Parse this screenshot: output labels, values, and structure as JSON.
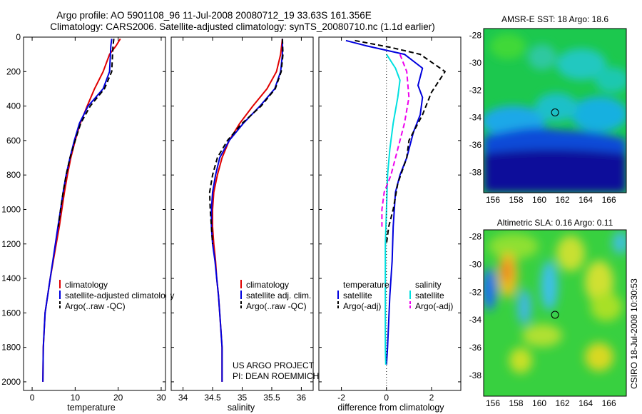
{
  "header": {
    "title_line1": "Argo profile: AO 5901108_96 11-Jul-2008 20080712_19 33.63S 161.356E",
    "title_line2": "Climatology: CARS2006. Satellite-adjusted climatology: synTS_20080710.nc (1.1d earlier)"
  },
  "side_label": "CSIRO 18-Jul-2008 10:30:53",
  "colors": {
    "red": "#e00000",
    "blue": "#0000dd",
    "black": "#000000",
    "cyan": "#00e0e0",
    "magenta": "#ee00ee"
  },
  "chart_data": [
    {
      "type": "line",
      "title": "",
      "xlabel": "temperature",
      "ylabel": "",
      "xlim": [
        -2,
        31
      ],
      "ylim": [
        2050,
        0
      ],
      "xticks": [
        "0",
        "10",
        "20",
        "30"
      ],
      "yticks": [
        "0",
        "200",
        "400",
        "600",
        "800",
        "1000",
        "1200",
        "1400",
        "1600",
        "1800",
        "2000"
      ],
      "legend": [
        "climatology",
        "satellite-adjusted climatology",
        "Argo(..raw -QC)"
      ],
      "legend_location": "lower-left",
      "series": [
        {
          "name": "climatology",
          "color": "red",
          "style": "solid",
          "x": [
            20.5,
            19.5,
            18.0,
            16.5,
            14.5,
            12.8,
            11.2,
            10.0,
            9.0,
            8.2,
            7.5,
            6.9,
            6.3,
            5.6,
            4.9,
            4.2,
            3.6,
            3.0,
            2.6,
            2.5
          ],
          "y": [
            10,
            50,
            100,
            200,
            300,
            400,
            500,
            600,
            700,
            800,
            900,
            1000,
            1100,
            1200,
            1300,
            1400,
            1500,
            1600,
            1800,
            2000
          ]
        },
        {
          "name": "satellite-adjusted climatology",
          "color": "blue",
          "style": "solid",
          "x": [
            18.5,
            18.3,
            18.2,
            18.0,
            16.5,
            13.0,
            11.0,
            9.8,
            8.8,
            7.9,
            7.2,
            6.6,
            6.0,
            5.4,
            4.8,
            4.2,
            3.6,
            3.0,
            2.6,
            2.5
          ],
          "y": [
            10,
            50,
            100,
            200,
            300,
            400,
            500,
            600,
            700,
            800,
            900,
            1000,
            1100,
            1200,
            1300,
            1400,
            1500,
            1600,
            1800,
            2000
          ]
        },
        {
          "name": "Argo(..raw -QC)",
          "color": "black",
          "style": "dashed",
          "x": [
            19.0,
            18.8,
            18.7,
            18.5,
            16.8,
            13.5,
            11.3,
            10.0,
            8.8,
            7.9,
            7.2,
            6.6,
            6.1
          ],
          "y": [
            10,
            50,
            100,
            200,
            300,
            400,
            500,
            600,
            700,
            800,
            900,
            1000,
            1100
          ]
        }
      ]
    },
    {
      "type": "line",
      "title": "",
      "xlabel": "salinity",
      "ylabel": "",
      "xlim": [
        33.8,
        36.2
      ],
      "ylim": [
        2050,
        0
      ],
      "xticks": [
        "34",
        "34.5",
        "35",
        "35.5",
        "36"
      ],
      "yticks": [],
      "legend": [
        "climatology",
        "satellite adj. clim.",
        "Argo(..raw -QC)"
      ],
      "legend_location": "lower-left",
      "series": [
        {
          "name": "climatology",
          "color": "red",
          "style": "solid",
          "x": [
            35.68,
            35.65,
            35.58,
            35.42,
            35.18,
            34.96,
            34.78,
            34.66,
            34.58,
            34.52,
            34.5,
            34.5,
            34.52,
            34.55,
            34.57,
            34.6,
            34.62,
            34.64,
            34.66,
            34.66
          ],
          "y": [
            10,
            100,
            200,
            300,
            400,
            500,
            600,
            700,
            800,
            900,
            1000,
            1100,
            1200,
            1300,
            1400,
            1500,
            1600,
            1700,
            1800,
            2000
          ]
        },
        {
          "name": "satellite adj. clim.",
          "color": "blue",
          "style": "solid",
          "x": [
            35.68,
            35.68,
            35.65,
            35.55,
            35.3,
            35.02,
            34.78,
            34.62,
            34.55,
            34.5,
            34.48,
            34.48,
            34.5,
            34.54,
            34.57,
            34.6,
            34.62,
            34.64,
            34.66,
            34.66
          ],
          "y": [
            10,
            100,
            200,
            300,
            400,
            500,
            600,
            700,
            800,
            900,
            1000,
            1100,
            1200,
            1300,
            1400,
            1500,
            1600,
            1700,
            1800,
            2000
          ]
        },
        {
          "name": "Argo(..raw -QC)",
          "color": "black",
          "style": "dashed",
          "x": [
            35.68,
            35.69,
            35.66,
            35.56,
            35.32,
            35.0,
            34.75,
            34.58,
            34.5,
            34.45,
            34.46,
            34.48,
            34.5
          ],
          "y": [
            10,
            100,
            200,
            300,
            400,
            500,
            600,
            700,
            800,
            900,
            1000,
            1100,
            1200
          ]
        }
      ]
    },
    {
      "type": "line",
      "title": "",
      "xlabel": "difference from climatology",
      "ylabel": "",
      "xlim": [
        -3,
        3.3
      ],
      "ylim": [
        2050,
        0
      ],
      "xticks": [
        "-2",
        "0",
        "2"
      ],
      "yticks": [],
      "legend": [
        "temperature",
        "satellite",
        "Argo(-adj)",
        "salinity",
        "satellite",
        "Argo(-adj)"
      ],
      "legend_location": "lower-center",
      "series": [
        {
          "name": "temperature satellite",
          "color": "blue",
          "style": "solid",
          "x": [
            -1.8,
            -0.9,
            0.8,
            1.6,
            1.4,
            1.6,
            1.5,
            1.2,
            0.9,
            0.6,
            0.4,
            0.3,
            0.25,
            0.15,
            0.05,
            0.0
          ],
          "y": [
            20,
            50,
            100,
            180,
            280,
            350,
            450,
            550,
            700,
            800,
            900,
            1100,
            1300,
            1500,
            1800,
            1900
          ]
        },
        {
          "name": "temperature Argo(-adj)",
          "color": "black",
          "style": "dashed",
          "x": [
            -1.4,
            0.2,
            1.5,
            2.6,
            2.0,
            1.6,
            1.0,
            0.9,
            0.5,
            0.3,
            0.1,
            0.0
          ],
          "y": [
            20,
            60,
            100,
            200,
            320,
            450,
            600,
            700,
            850,
            1000,
            1100,
            1200
          ]
        },
        {
          "name": "salinity satellite",
          "color": "cyan",
          "style": "solid",
          "x": [
            0.0,
            0.4,
            0.6,
            0.5,
            0.3,
            0.15,
            0.05,
            0.0,
            -0.05,
            -0.05,
            -0.05,
            -0.05,
            -0.03
          ],
          "y": [
            100,
            180,
            250,
            350,
            500,
            650,
            800,
            1000,
            1200,
            1400,
            1600,
            1800,
            1900
          ]
        },
        {
          "name": "salinity Argo(-adj)",
          "color": "magenta",
          "style": "dashed",
          "x": [
            0.6,
            0.9,
            1.0,
            0.8,
            0.6,
            0.2,
            -0.1,
            -0.2,
            -0.2
          ],
          "y": [
            100,
            200,
            350,
            500,
            600,
            800,
            900,
            1000,
            1100
          ]
        }
      ]
    },
    {
      "type": "heatmap",
      "title": "AMSR-E SST: 18 Argo: 18.6",
      "xlabel": "",
      "ylabel": "",
      "xlim": [
        155.2,
        167.5
      ],
      "ylim": [
        -39.5,
        -27.5
      ],
      "xticks": [
        "156",
        "158",
        "160",
        "162",
        "164",
        "166"
      ],
      "yticks": [
        "-28",
        "-30",
        "-32",
        "-34",
        "-36",
        "-38"
      ],
      "marker": {
        "lon": 161.356,
        "lat": -33.63
      }
    },
    {
      "type": "heatmap",
      "title": "Altimetric SLA: 0.16 Argo: 0.11",
      "xlabel": "",
      "ylabel": "",
      "xlim": [
        155.2,
        167.5
      ],
      "ylim": [
        -39.5,
        -27.5
      ],
      "xticks": [
        "156",
        "158",
        "160",
        "162",
        "164",
        "166"
      ],
      "yticks": [
        "-28",
        "-30",
        "-32",
        "-34",
        "-36",
        "-38"
      ],
      "marker": {
        "lon": 161.356,
        "lat": -33.63
      }
    }
  ],
  "footer": {
    "project": "US ARGO PROJECT",
    "pi": "PI: DEAN ROEMMICH"
  }
}
